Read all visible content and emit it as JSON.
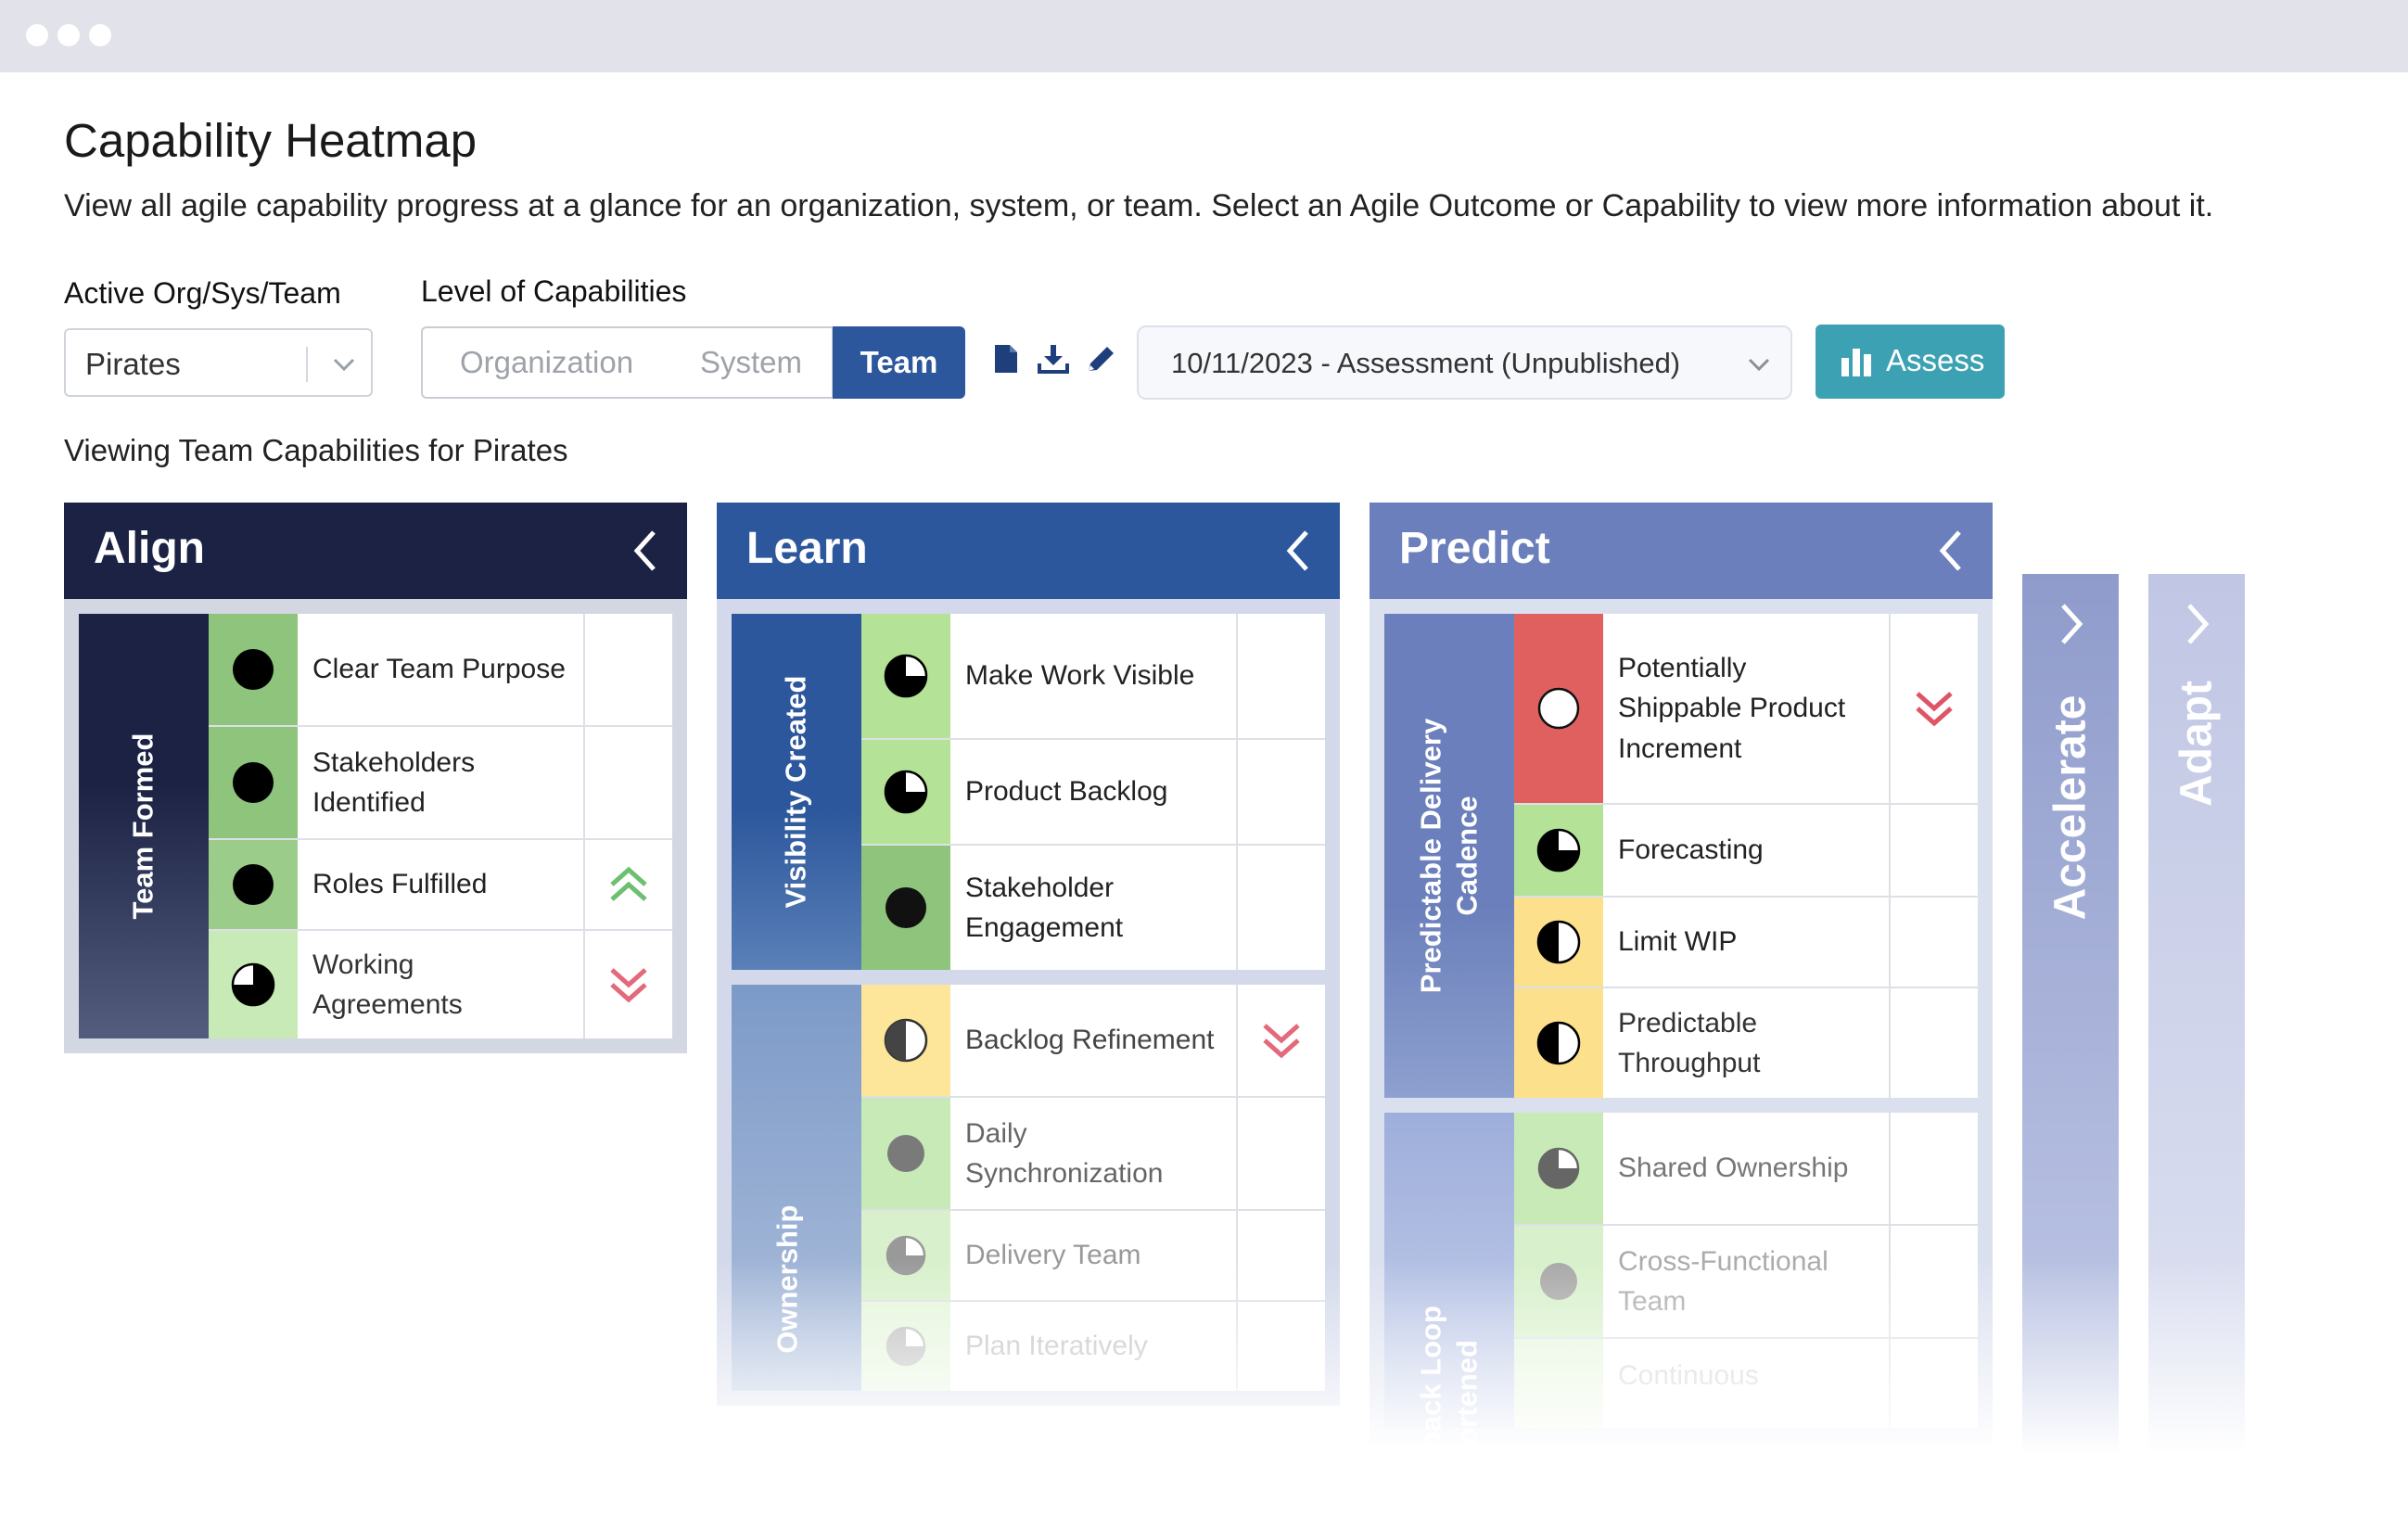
{
  "window": {
    "controls": [
      "close",
      "minimize",
      "maximize"
    ]
  },
  "header": {
    "title": "Capability Heatmap",
    "description": "View all agile capability progress at a glance for an organization, system, or team. Select an Agile Outcome or Capability to view more information about it."
  },
  "filters": {
    "org_label": "Active Org/Sys/Team",
    "org_value": "Pirates",
    "level_label": "Level of Capabilities",
    "levels": [
      "Organization",
      "System",
      "Team"
    ],
    "active_level": "Team",
    "tools": [
      "document-icon",
      "download-icon",
      "pencil-icon"
    ],
    "assessment_value": "10/11/2023 - Assessment (Unpublished)",
    "assess_button": "Assess"
  },
  "viewing_text": "Viewing Team Capabilities for Pirates",
  "colors": {
    "align_header": "#1b2244",
    "learn_header": "#2c579c",
    "predict_header": "#6a7fbb",
    "accelerate": "#8f9bcb",
    "adapt": "#c0c6e4",
    "assess_button": "#3ca2b3",
    "trend_up": "#6cc070",
    "trend_down": "#e36a7a"
  },
  "panels": [
    {
      "title": "Align",
      "groups": [
        {
          "name": "Team Formed",
          "rows": [
            {
              "name": "Clear Team Purpose",
              "fill": 4,
              "color": "#8ec47c",
              "trend": ""
            },
            {
              "name": "Stakeholders Identified",
              "fill": 4,
              "color": "#8ec47c",
              "trend": ""
            },
            {
              "name": "Roles Fulfilled",
              "fill": 4,
              "color": "#9ccc8a",
              "trend": "up"
            },
            {
              "name": "Working Agreements",
              "fill": 3,
              "color": "#c7eab7",
              "trend": "down"
            }
          ]
        }
      ]
    },
    {
      "title": "Learn",
      "groups": [
        {
          "name": "Visibility Created",
          "rows": [
            {
              "name": "Make Work Visible",
              "fill": 3,
              "color": "#b4e397",
              "trend": ""
            },
            {
              "name": "Product Backlog",
              "fill": 3,
              "color": "#b4e397",
              "trend": ""
            },
            {
              "name": "Stakeholder Engagement",
              "fill": 4,
              "color": "#8ec47c",
              "trend": ""
            }
          ]
        },
        {
          "name": "Ownership",
          "rows": [
            {
              "name": "Backlog Refinement",
              "fill": 2,
              "color": "#fde69a",
              "trend": "down"
            },
            {
              "name": "Daily Synchronization",
              "fill": 4,
              "color": "#c7eab7",
              "trend": ""
            },
            {
              "name": "Delivery Team",
              "fill": 3,
              "color": "#c7eab7",
              "trend": ""
            },
            {
              "name": "Plan Iteratively",
              "fill": 3,
              "color": "#c7eab7",
              "trend": ""
            }
          ]
        }
      ]
    },
    {
      "title": "Predict",
      "groups": [
        {
          "name": "Predictable Delivery Cadence",
          "rows": [
            {
              "name": "Potentially Shippable Product Increment",
              "fill": 0,
              "color": "#e06060",
              "trend": "down"
            },
            {
              "name": "Forecasting",
              "fill": 3,
              "color": "#b4e397",
              "trend": ""
            },
            {
              "name": "Limit WIP",
              "fill": 2,
              "color": "#fde08c",
              "trend": ""
            },
            {
              "name": "Predictable Throughput",
              "fill": 2,
              "color": "#fde08c",
              "trend": ""
            }
          ]
        },
        {
          "name": "Feedback Loop Shortened",
          "rows": [
            {
              "name": "Shared Ownership",
              "fill": 3,
              "color": "#c7eab7",
              "trend": ""
            },
            {
              "name": "Cross-Functional Team",
              "fill": 4,
              "color": "#c7eab7",
              "trend": ""
            },
            {
              "name": "Continuous",
              "fill": 3,
              "color": "#c7eab7",
              "trend": ""
            }
          ]
        }
      ]
    }
  ],
  "collapsed_panels": [
    {
      "title": "Accelerate"
    },
    {
      "title": "Adapt"
    }
  ]
}
